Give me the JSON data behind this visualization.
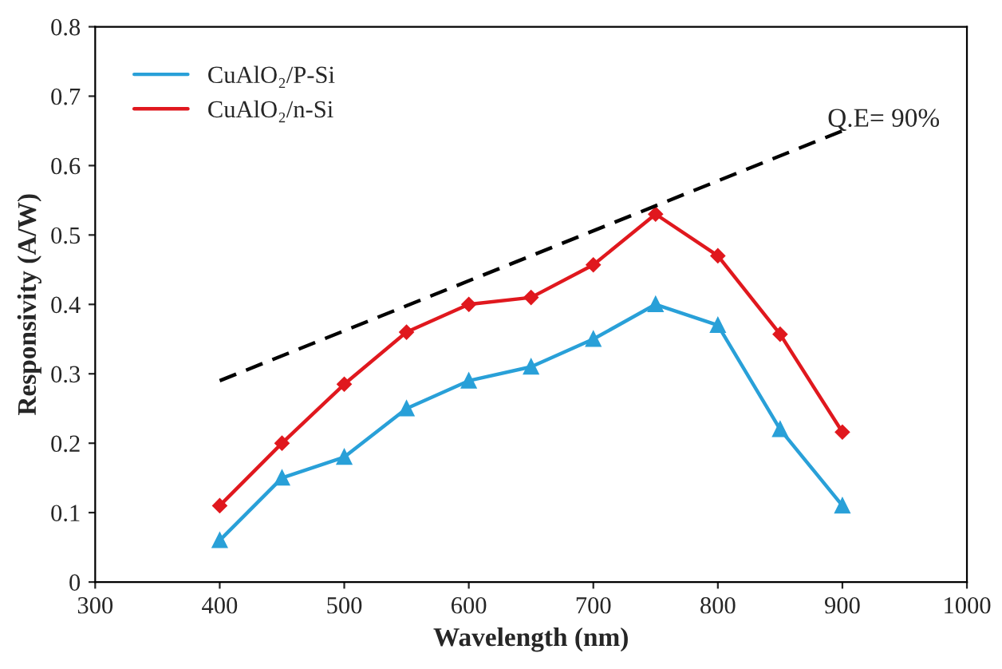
{
  "chart_data": {
    "type": "line",
    "xlabel": "Wavelength (nm)",
    "ylabel": "Responsivity (A/W)",
    "xlim": [
      300,
      1000
    ],
    "xticks": [
      300,
      400,
      500,
      600,
      700,
      800,
      900,
      1000
    ],
    "ylim": [
      0,
      0.8
    ],
    "yticks": [
      0,
      0.1,
      0.2,
      0.3,
      0.4,
      0.5,
      0.6,
      0.7,
      0.8
    ],
    "x": [
      400,
      450,
      500,
      550,
      600,
      650,
      700,
      750,
      800,
      850,
      900
    ],
    "series": [
      {
        "name": "CuAlO₂/P-Si",
        "color": "#29a0d8",
        "marker": "triangle",
        "values": [
          0.06,
          0.15,
          0.18,
          0.25,
          0.29,
          0.31,
          0.35,
          0.4,
          0.37,
          0.22,
          0.11
        ]
      },
      {
        "name": "CuAlO₂/n-Si",
        "color": "#e0181e",
        "marker": "diamond",
        "values": [
          0.11,
          0.2,
          0.285,
          0.36,
          0.4,
          0.41,
          0.457,
          0.53,
          0.47,
          0.357,
          0.216
        ]
      },
      {
        "color": "#000000",
        "marker": "none",
        "line_style": "dashed",
        "x": [
          400,
          900
        ],
        "values": [
          0.29,
          0.65
        ]
      }
    ],
    "annotations": [
      "Q.E= 90%"
    ],
    "legend": "top left",
    "grid": false
  }
}
